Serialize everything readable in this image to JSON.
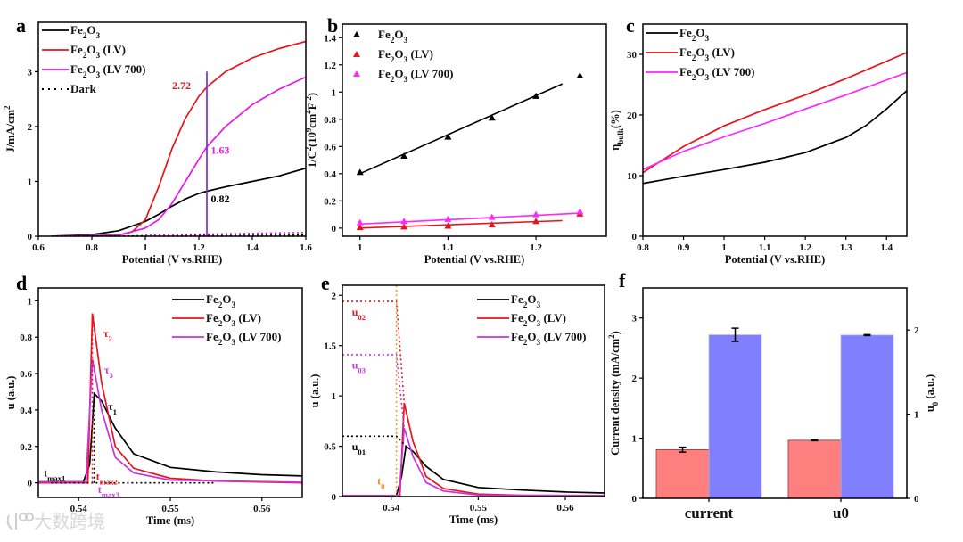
{
  "watermark": "大数跨境",
  "chart_data": [
    {
      "id": "a",
      "letter": "a",
      "type": "line",
      "xlabel": "Potential (V vs.RHE)",
      "ylabel": "J/mA/cm^{2}",
      "xlim": [
        0.6,
        1.6
      ],
      "ylim": [
        0,
        3.9
      ],
      "xticks": [
        0.6,
        0.8,
        1,
        1.2,
        1.4,
        1.6
      ],
      "yticks": [
        0,
        1,
        2,
        3
      ],
      "legend": "top-left",
      "series": [
        {
          "name": "Fe_{2}O_{3}",
          "color": "#000000",
          "points": [
            [
              0.65,
              0
            ],
            [
              0.8,
              0.03
            ],
            [
              0.9,
              0.1
            ],
            [
              1.0,
              0.27
            ],
            [
              1.05,
              0.4
            ],
            [
              1.1,
              0.55
            ],
            [
              1.15,
              0.68
            ],
            [
              1.2,
              0.78
            ],
            [
              1.23,
              0.82
            ],
            [
              1.3,
              0.9
            ],
            [
              1.4,
              1.0
            ],
            [
              1.5,
              1.1
            ],
            [
              1.6,
              1.24
            ]
          ]
        },
        {
          "name": "Fe_{2}O_{3} (LV)",
          "color": "#e8141c",
          "points": [
            [
              0.65,
              0
            ],
            [
              0.9,
              0.02
            ],
            [
              0.95,
              0.08
            ],
            [
              1.0,
              0.3
            ],
            [
              1.05,
              0.9
            ],
            [
              1.1,
              1.6
            ],
            [
              1.15,
              2.15
            ],
            [
              1.2,
              2.55
            ],
            [
              1.23,
              2.72
            ],
            [
              1.3,
              3.0
            ],
            [
              1.4,
              3.25
            ],
            [
              1.5,
              3.42
            ],
            [
              1.6,
              3.55
            ]
          ]
        },
        {
          "name": "Fe_{2}O_{3} (LV 700)",
          "color": "#e619e6",
          "points": [
            [
              0.65,
              0
            ],
            [
              0.9,
              0.02
            ],
            [
              1.0,
              0.15
            ],
            [
              1.05,
              0.3
            ],
            [
              1.1,
              0.6
            ],
            [
              1.15,
              1.0
            ],
            [
              1.2,
              1.4
            ],
            [
              1.23,
              1.63
            ],
            [
              1.3,
              2.0
            ],
            [
              1.4,
              2.4
            ],
            [
              1.5,
              2.68
            ],
            [
              1.6,
              2.9
            ]
          ]
        },
        {
          "name": "Dark",
          "color": "#000000",
          "dash": true,
          "points": [
            [
              0.65,
              0
            ],
            [
              1.6,
              0.02
            ]
          ]
        },
        {
          "name": "",
          "color": "#e619e6",
          "dash": true,
          "points": [
            [
              1.0,
              0.02
            ],
            [
              1.6,
              0.07
            ]
          ]
        },
        {
          "name": "",
          "color": "#7a2fd0",
          "points": [
            [
              1.23,
              0
            ],
            [
              1.23,
              3.0
            ]
          ]
        }
      ],
      "annotations": [
        {
          "text": "2.72",
          "x": 1.1,
          "y": 2.68,
          "color": "#e8141c"
        },
        {
          "text": "1.63",
          "x": 1.245,
          "y": 1.5,
          "color": "#e619e6"
        },
        {
          "text": "0.82",
          "x": 1.245,
          "y": 0.62,
          "color": "#000000"
        }
      ]
    },
    {
      "id": "b",
      "letter": "b",
      "type": "scatter",
      "xlabel": "Potential (V vs.RHE)",
      "ylabel": "1/C^{2}(10^{9}cm^{4}F^{-2})",
      "xlim": [
        0.98,
        1.28
      ],
      "ylim": [
        -0.06,
        1.5
      ],
      "xticks": [
        1,
        1.1,
        1.2
      ],
      "yticks": [
        0,
        0.2,
        0.4,
        0.6,
        0.8,
        1,
        1.2,
        1.4
      ],
      "legend": "top-left",
      "series": [
        {
          "name": "Fe_{2}O_{3}",
          "color": "#000000",
          "marker": true,
          "x": [
            1,
            1.05,
            1.1,
            1.15,
            1.2,
            1.25
          ],
          "y": [
            0.41,
            0.53,
            0.67,
            0.81,
            0.97,
            1.12
          ],
          "fit": [
            [
              1.0,
              0.4
            ],
            [
              1.23,
              1.06
            ]
          ]
        },
        {
          "name": "Fe_{2}O_{3} (LV)",
          "color": "#e8141c",
          "marker": true,
          "x": [
            1,
            1.05,
            1.1,
            1.15,
            1.2,
            1.25
          ],
          "y": [
            0.005,
            0.01,
            0.015,
            0.025,
            0.05,
            0.105
          ],
          "fit": [
            [
              1.0,
              0.0
            ],
            [
              1.23,
              0.055
            ]
          ]
        },
        {
          "name": "Fe_{2}O_{3} (LV 700)",
          "color": "#ff26ff",
          "marker": true,
          "x": [
            1,
            1.05,
            1.1,
            1.15,
            1.2,
            1.25
          ],
          "y": [
            0.04,
            0.05,
            0.065,
            0.08,
            0.1,
            0.12
          ],
          "fit": [
            [
              1.0,
              0.03
            ],
            [
              1.25,
              0.11
            ]
          ]
        }
      ],
      "annotations": []
    },
    {
      "id": "c",
      "letter": "c",
      "type": "line",
      "xlabel": "Potential (V vs.RHE)",
      "ylabel": "η_{bulk}(%)",
      "xlim": [
        0.8,
        1.45
      ],
      "ylim": [
        0,
        35
      ],
      "xticks": [
        0.8,
        0.9,
        1,
        1.1,
        1.2,
        1.3,
        1.4
      ],
      "yticks": [
        0,
        10,
        20,
        30
      ],
      "legend": "top-left",
      "series": [
        {
          "name": "Fe_{2}O_{3}",
          "color": "#000000",
          "points": [
            [
              0.8,
              8.7
            ],
            [
              0.9,
              9.9
            ],
            [
              1.0,
              11
            ],
            [
              1.1,
              12.2
            ],
            [
              1.2,
              13.8
            ],
            [
              1.3,
              16.3
            ],
            [
              1.35,
              18.3
            ],
            [
              1.4,
              21
            ],
            [
              1.45,
              24
            ]
          ]
        },
        {
          "name": "Fe_{2}O_{3} (LV)",
          "color": "#e8141c",
          "points": [
            [
              0.8,
              10.5
            ],
            [
              0.9,
              14.8
            ],
            [
              1.0,
              18.2
            ],
            [
              1.1,
              20.9
            ],
            [
              1.2,
              23.3
            ],
            [
              1.3,
              26
            ],
            [
              1.45,
              30.3
            ]
          ]
        },
        {
          "name": "Fe_{2}O_{3} (LV 700)",
          "color": "#ff26ff",
          "points": [
            [
              0.8,
              11
            ],
            [
              0.9,
              14
            ],
            [
              1.0,
              16.4
            ],
            [
              1.1,
              18.6
            ],
            [
              1.2,
              21
            ],
            [
              1.3,
              23.3
            ],
            [
              1.45,
              27
            ]
          ]
        }
      ],
      "annotations": []
    },
    {
      "id": "d",
      "letter": "d",
      "type": "line",
      "xlabel": "Time (ms)",
      "ylabel": "u (a.u.)",
      "xlim": [
        0.5356,
        0.5644
      ],
      "ylim": [
        -0.08,
        1.07
      ],
      "xticks": [
        0.54,
        0.55,
        0.56
      ],
      "yticks": [
        0,
        0.2,
        0.4,
        0.6,
        0.8,
        1
      ],
      "legend": "top-right",
      "series": [
        {
          "name": "Fe_{2}O_{3}",
          "color": "#000000",
          "points": [
            [
              0.5356,
              0.005
            ],
            [
              0.5405,
              0.005
            ],
            [
              0.5412,
              0.1
            ],
            [
              0.5417,
              0.49
            ],
            [
              0.5425,
              0.45
            ],
            [
              0.544,
              0.3
            ],
            [
              0.546,
              0.16
            ],
            [
              0.55,
              0.085
            ],
            [
              0.555,
              0.06
            ],
            [
              0.56,
              0.045
            ],
            [
              0.5644,
              0.038
            ]
          ]
        },
        {
          "name": "Fe_{2}O_{3} (LV)",
          "color": "#e8141c",
          "points": [
            [
              0.5356,
              0
            ],
            [
              0.541,
              0
            ],
            [
              0.5415,
              0.93
            ],
            [
              0.5425,
              0.55
            ],
            [
              0.544,
              0.2
            ],
            [
              0.546,
              0.08
            ],
            [
              0.55,
              0.025
            ],
            [
              0.555,
              0.01
            ],
            [
              0.5644,
              0
            ]
          ]
        },
        {
          "name": "Fe_{2}O_{3} (LV 700)",
          "color": "#cc33dd",
          "points": [
            [
              0.5356,
              0.005
            ],
            [
              0.5408,
              0.005
            ],
            [
              0.5415,
              0.68
            ],
            [
              0.5425,
              0.4
            ],
            [
              0.544,
              0.14
            ],
            [
              0.546,
              0.055
            ],
            [
              0.55,
              0.015
            ],
            [
              0.5644,
              0.003
            ]
          ]
        },
        {
          "name": "",
          "color": "#000000",
          "dash": true,
          "points": [
            [
              0.537,
              0
            ],
            [
              0.555,
              0
            ]
          ]
        },
        {
          "name": "",
          "color": "#000000",
          "dash": true,
          "points": [
            [
              0.5417,
              0
            ],
            [
              0.5417,
              0.49
            ]
          ]
        },
        {
          "name": "",
          "color": "#e8141c",
          "dash": true,
          "points": [
            [
              0.5415,
              0
            ],
            [
              0.5415,
              0.93
            ]
          ]
        }
      ],
      "annotations": [
        {
          "text": "τ_{2}",
          "x": 0.5427,
          "y": 0.8,
          "color": "#e8141c"
        },
        {
          "text": "τ_{3}",
          "x": 0.5428,
          "y": 0.6,
          "color": "#cc33dd"
        },
        {
          "text": "τ_{1}",
          "x": 0.5432,
          "y": 0.4,
          "color": "#000000"
        },
        {
          "text": "t_{max1}",
          "x": 0.5362,
          "y": 0.035,
          "color": "#000000"
        },
        {
          "text": "t_{max2}",
          "x": 0.5419,
          "y": 0.015,
          "color": "#e8141c"
        },
        {
          "text": "t_{max3}",
          "x": 0.5421,
          "y": -0.055,
          "color": "#cc33dd"
        }
      ]
    },
    {
      "id": "e",
      "letter": "e",
      "type": "line",
      "xlabel": "Time (ms)",
      "ylabel": "u (a.u.)",
      "xlim": [
        0.5344,
        0.5645
      ],
      "ylim": [
        0,
        2.1
      ],
      "xticks": [
        0.54,
        0.55,
        0.56
      ],
      "yticks": [
        0,
        0.5,
        1,
        1.5,
        2
      ],
      "legend": "top-right",
      "series": [
        {
          "name": "Fe_{2}O_{3}",
          "color": "#000000",
          "points": [
            [
              0.5344,
              0.01
            ],
            [
              0.5406,
              0.01
            ],
            [
              0.5412,
              0.2
            ],
            [
              0.5417,
              0.5
            ],
            [
              0.5425,
              0.45
            ],
            [
              0.544,
              0.3
            ],
            [
              0.546,
              0.17
            ],
            [
              0.55,
              0.09
            ],
            [
              0.555,
              0.065
            ],
            [
              0.56,
              0.045
            ],
            [
              0.5645,
              0.035
            ]
          ]
        },
        {
          "name": "Fe_{2}O_{3} (LV)",
          "color": "#e8141c",
          "points": [
            [
              0.5344,
              0.01
            ],
            [
              0.541,
              0.01
            ],
            [
              0.5415,
              0.93
            ],
            [
              0.5425,
              0.55
            ],
            [
              0.544,
              0.2
            ],
            [
              0.546,
              0.08
            ],
            [
              0.55,
              0.025
            ],
            [
              0.555,
              0.012
            ],
            [
              0.5645,
              0.01
            ]
          ]
        },
        {
          "name": "Fe_{2}O_{3} (LV 700)",
          "color": "#cc33dd",
          "points": [
            [
              0.5344,
              0.01
            ],
            [
              0.5409,
              0.01
            ],
            [
              0.5415,
              0.68
            ],
            [
              0.5425,
              0.4
            ],
            [
              0.544,
              0.14
            ],
            [
              0.546,
              0.055
            ],
            [
              0.55,
              0.015
            ],
            [
              0.5645,
              0.008
            ]
          ]
        },
        {
          "name": "",
          "color": "#f0a020",
          "dash": true,
          "points": [
            [
              0.5406,
              0
            ],
            [
              0.5406,
              2.1
            ]
          ]
        },
        {
          "name": "",
          "color": "#e8141c",
          "dash": true,
          "points": [
            [
              0.5344,
              1.94
            ],
            [
              0.5406,
              1.94
            ],
            [
              0.5415,
              0.93
            ]
          ]
        },
        {
          "name": "",
          "color": "#cc33dd",
          "dash": true,
          "points": [
            [
              0.5344,
              1.41
            ],
            [
              0.5406,
              1.41
            ],
            [
              0.5415,
              0.68
            ]
          ]
        },
        {
          "name": "",
          "color": "#000000",
          "dash": true,
          "points": [
            [
              0.5344,
              0.6
            ],
            [
              0.5406,
              0.6
            ],
            [
              0.5417,
              0.5
            ]
          ]
        }
      ],
      "annotations": [
        {
          "text": "u_{02}",
          "x": 0.5355,
          "y": 1.8,
          "color": "#e8141c"
        },
        {
          "text": "u_{03}",
          "x": 0.5355,
          "y": 1.27,
          "color": "#cc33dd"
        },
        {
          "text": "u_{01}",
          "x": 0.5355,
          "y": 0.46,
          "color": "#000000"
        },
        {
          "text": "t_{0}",
          "x": 0.5384,
          "y": 0.12,
          "color": "#f08c1a"
        }
      ]
    },
    {
      "id": "f",
      "letter": "f",
      "type": "bar",
      "ylabel": "Current density (mA/cm^{2})",
      "ylabel_right": "u_{0} (a.u.)",
      "categories": [
        "current",
        "u0"
      ],
      "ylim": [
        0,
        3.5
      ],
      "yticks": [
        0,
        1,
        2,
        3
      ],
      "ylim_right": [
        0,
        2.5
      ],
      "yticks_right": [
        0,
        1,
        2
      ],
      "groups": [
        {
          "category": "current",
          "axis": "left",
          "bars": [
            {
              "color": "#ff7f7f",
              "value": 0.81,
              "error": 0.04
            },
            {
              "color": "#8080ff",
              "value": 2.72,
              "error": 0.11
            }
          ]
        },
        {
          "category": "u0",
          "axis": "right",
          "bars": [
            {
              "color": "#ff7f7f",
              "value": 0.69,
              "error": 0.005
            },
            {
              "color": "#8080ff",
              "value": 1.94,
              "error": 0.005
            }
          ]
        }
      ]
    }
  ]
}
